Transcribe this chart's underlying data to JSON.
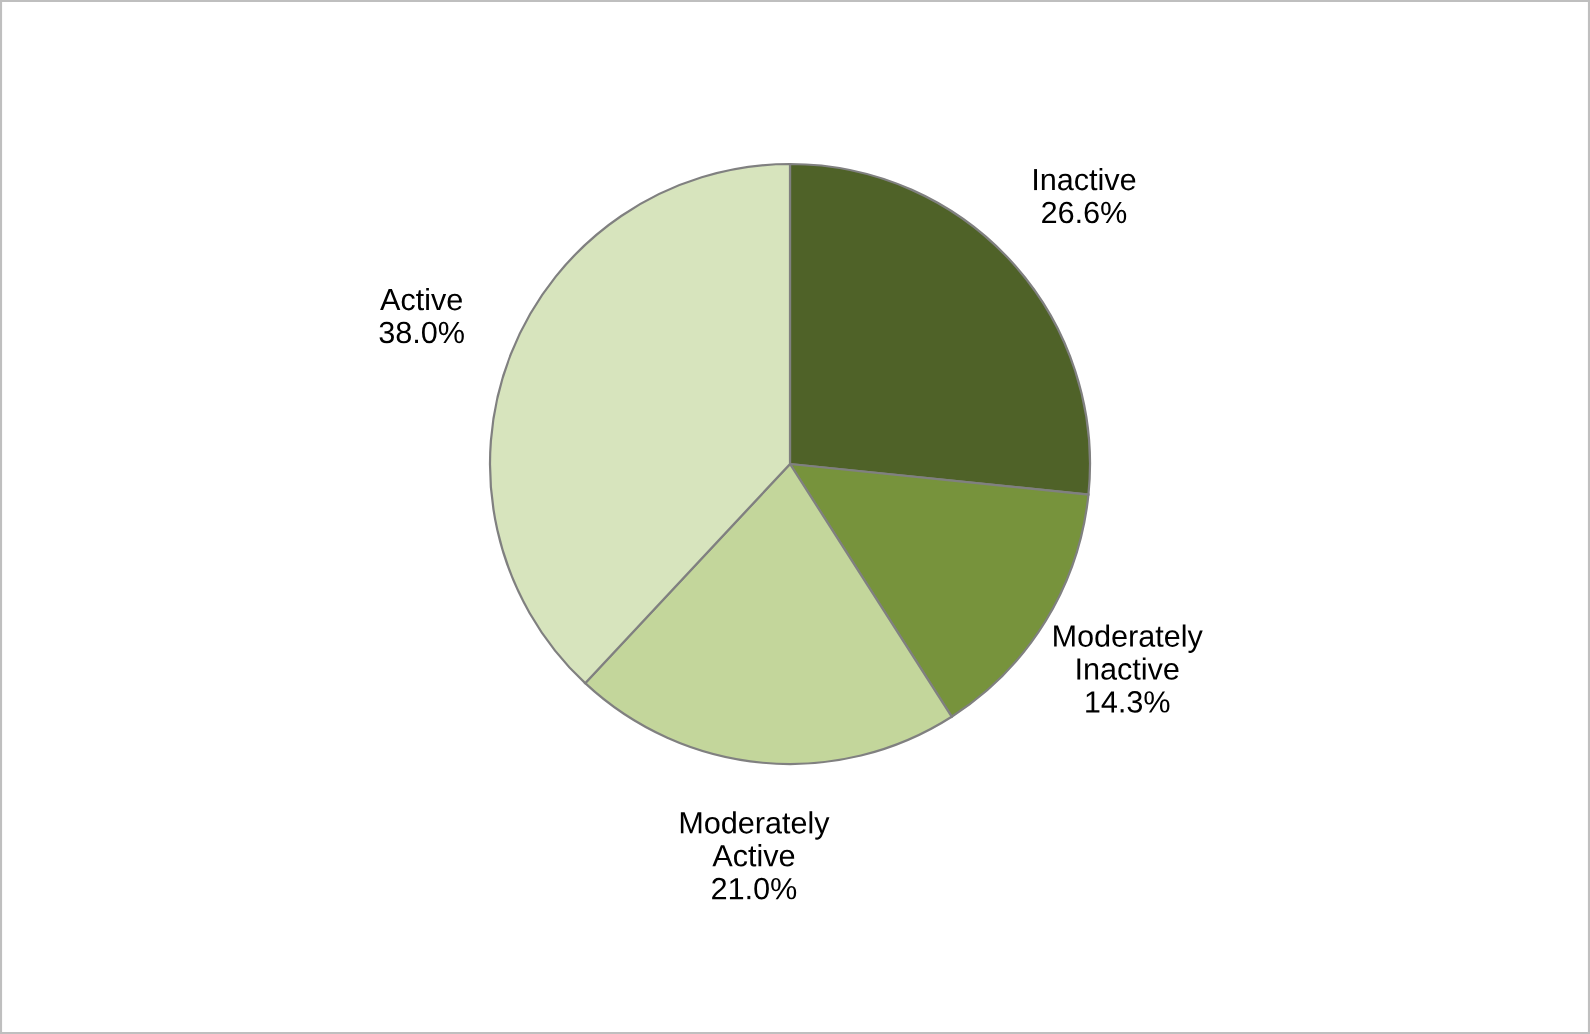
{
  "chart_data": {
    "type": "pie",
    "categories": [
      "Inactive",
      "Moderately Inactive",
      "Moderately Active",
      "Active"
    ],
    "values": [
      26.6,
      14.3,
      21.0,
      38.0
    ],
    "colors": [
      "#4f6228",
      "#77933c",
      "#c3d69b",
      "#d7e4bd"
    ],
    "value_labels": [
      "26.6%",
      "14.3%",
      "21.0%",
      "38.0%"
    ],
    "legend": false
  }
}
